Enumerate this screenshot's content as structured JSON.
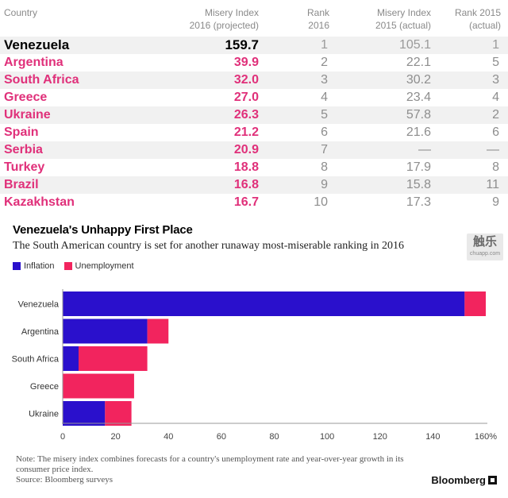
{
  "table": {
    "headers": {
      "country": "Country",
      "misery_2016": "Misery Index\n2016 (projected)",
      "rank_2016": "Rank\n2016",
      "misery_2015": "Misery Index\n2015 (actual)",
      "rank_2015": "Rank 2015\n(actual)"
    },
    "rows": [
      {
        "country": "Venezuela",
        "mi16": "159.7",
        "rank16": "1",
        "mi15": "105.1",
        "rank15": "1"
      },
      {
        "country": "Argentina",
        "mi16": "39.9",
        "rank16": "2",
        "mi15": "22.1",
        "rank15": "5"
      },
      {
        "country": "South Africa",
        "mi16": "32.0",
        "rank16": "3",
        "mi15": "30.2",
        "rank15": "3"
      },
      {
        "country": "Greece",
        "mi16": "27.0",
        "rank16": "4",
        "mi15": "23.4",
        "rank15": "4"
      },
      {
        "country": "Ukraine",
        "mi16": "26.3",
        "rank16": "5",
        "mi15": "57.8",
        "rank15": "2"
      },
      {
        "country": "Spain",
        "mi16": "21.2",
        "rank16": "6",
        "mi15": "21.6",
        "rank15": "6"
      },
      {
        "country": "Serbia",
        "mi16": "20.9",
        "rank16": "7",
        "mi15": "—",
        "rank15": "—"
      },
      {
        "country": "Turkey",
        "mi16": "18.8",
        "rank16": "8",
        "mi15": "17.9",
        "rank15": "8"
      },
      {
        "country": "Brazil",
        "mi16": "16.8",
        "rank16": "9",
        "mi15": "15.8",
        "rank15": "11"
      },
      {
        "country": "Kazakhstan",
        "mi16": "16.7",
        "rank16": "10",
        "mi15": "17.3",
        "rank15": "9"
      }
    ]
  },
  "watermark": {
    "main": "触乐",
    "sub": "chuapp.com"
  },
  "colors": {
    "inflation": "#2a10cc",
    "unemployment": "#f2245e",
    "accent_text": "#e0307a"
  },
  "chart_data": {
    "type": "bar",
    "orientation": "horizontal",
    "stacked": true,
    "title": "Venezuela's Unhappy First Place",
    "subtitle": "The South American country is set for another runaway most-miserable ranking in 2016",
    "categories": [
      "Venezuela",
      "Argentina",
      "South Africa",
      "Greece",
      "Ukraine"
    ],
    "series": [
      {
        "name": "Inflation",
        "color": "#2a10cc",
        "values": [
          152,
          32,
          6,
          0,
          16
        ]
      },
      {
        "name": "Unemployment",
        "color": "#f2245e",
        "values": [
          8,
          8,
          26,
          27,
          10
        ]
      }
    ],
    "xlim": [
      0,
      160
    ],
    "xticks": [
      "0",
      "20",
      "40",
      "60",
      "80",
      "100",
      "120",
      "140",
      "160%"
    ],
    "legend_position": "top-left",
    "note": "Note: The misery index combines forecasts for a country's unemployment rate and year-over-year growth in its consumer price index.",
    "source": "Source: Bloomberg surveys"
  },
  "footer": {
    "brand": "Bloomberg"
  }
}
